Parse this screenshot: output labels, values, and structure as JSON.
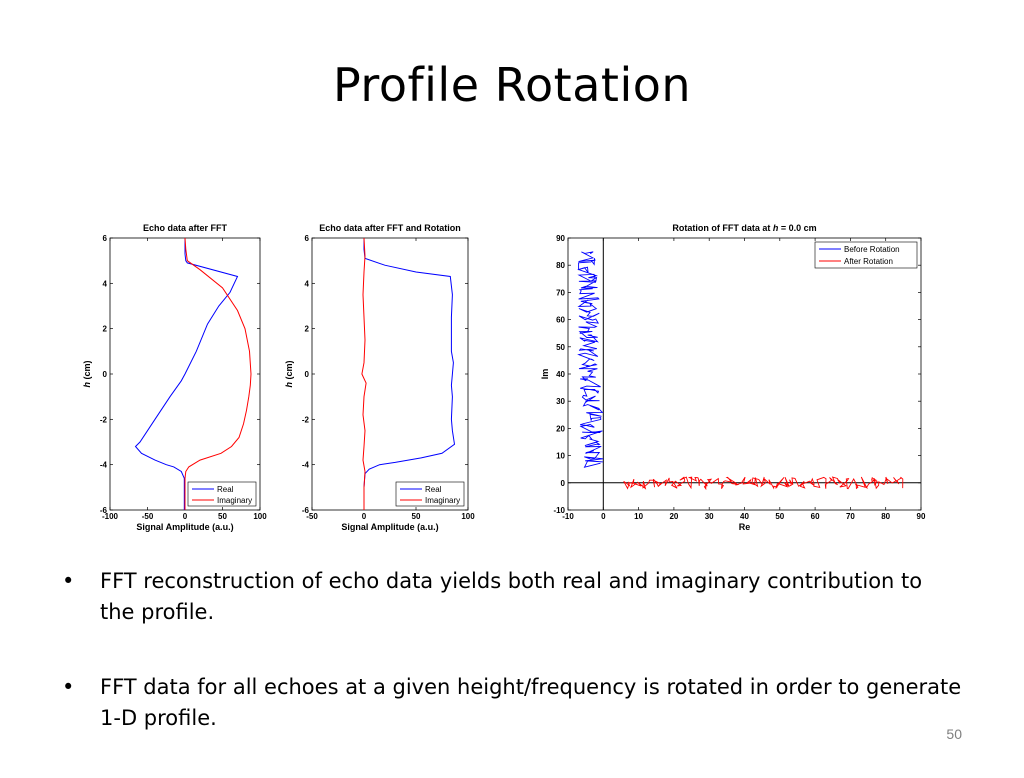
{
  "slide": {
    "title": "Profile Rotation",
    "bullets": [
      "FFT reconstruction of echo data yields both real and imaginary contribution to the profile.",
      "FFT data for all echoes at a given height/frequency is rotated in order to generate 1-D profile."
    ],
    "bullet_glyph": "•",
    "page_number": "50"
  },
  "colors": {
    "blue": "#0000ff",
    "red": "#ff0000"
  },
  "chart_data": [
    {
      "type": "line",
      "title": "Echo data after FFT",
      "xlabel": "Signal Amplitude (a.u.)",
      "ylabel_italic": "h",
      "ylabel_rest": " (cm)",
      "xlim": [
        -100,
        100
      ],
      "ylim": [
        -6,
        6
      ],
      "xticks": [
        -100,
        -50,
        0,
        50,
        100
      ],
      "yticks": [
        -6,
        -4,
        -2,
        0,
        2,
        4,
        6
      ],
      "grid": false,
      "legend": "bottom-right",
      "series": [
        {
          "name": "Real",
          "color": "#0000ff",
          "x": [
            0,
            0,
            0,
            0,
            1,
            3,
            70,
            60,
            45,
            30,
            15,
            0,
            -5,
            -20,
            -40,
            -60,
            -66,
            -58,
            -40,
            -25,
            -15,
            -5,
            -1,
            -1,
            -1
          ],
          "y": [
            6,
            5.8,
            5.5,
            5.3,
            5.0,
            4.9,
            4.3,
            3.6,
            3.0,
            2.2,
            1.0,
            0.0,
            -0.3,
            -1.0,
            -2.0,
            -3.0,
            -3.2,
            -3.5,
            -3.8,
            -4.0,
            -4.1,
            -4.3,
            -4.6,
            -5.0,
            -6.0
          ]
        },
        {
          "name": "Imaginary",
          "color": "#ff0000",
          "x": [
            0,
            1,
            3,
            20,
            50,
            70,
            80,
            86,
            88,
            87,
            85,
            82,
            78,
            72,
            62,
            48,
            20,
            5,
            1,
            0,
            0,
            0
          ],
          "y": [
            6,
            5.5,
            5.0,
            4.6,
            3.8,
            2.8,
            2.0,
            1.0,
            0.0,
            -0.5,
            -1.0,
            -1.6,
            -2.2,
            -2.8,
            -3.2,
            -3.5,
            -3.8,
            -4.1,
            -4.3,
            -4.6,
            -5.0,
            -6.0
          ]
        }
      ]
    },
    {
      "type": "line",
      "title": "Echo data after FFT and Rotation",
      "xlabel": "Signal Amplitude (a.u.)",
      "ylabel_italic": "h",
      "ylabel_rest": " (cm)",
      "xlim": [
        -50,
        100
      ],
      "ylim": [
        -6,
        6
      ],
      "xticks": [
        -50,
        0,
        50,
        100
      ],
      "yticks": [
        -6,
        -4,
        -2,
        0,
        2,
        4,
        6
      ],
      "grid": false,
      "legend": "bottom-right",
      "series": [
        {
          "name": "Real",
          "color": "#0000ff",
          "x": [
            0,
            0,
            1,
            20,
            50,
            83,
            85,
            84,
            84,
            86,
            85,
            84,
            85,
            84,
            85,
            87,
            75,
            55,
            30,
            15,
            5,
            1,
            0,
            0
          ],
          "y": [
            6,
            5.5,
            5.1,
            4.8,
            4.5,
            4.3,
            3.5,
            2.5,
            1.0,
            0.5,
            0.0,
            -0.5,
            -1.0,
            -2.0,
            -2.5,
            -3.1,
            -3.5,
            -3.7,
            -3.9,
            -4.0,
            -4.2,
            -4.4,
            -5.0,
            -6.0
          ]
        },
        {
          "name": "Imaginary",
          "color": "#ff0000",
          "x": [
            0,
            1,
            0,
            -1,
            0,
            1,
            0,
            -2,
            2,
            0,
            -1,
            1,
            0,
            -1,
            1,
            0,
            0
          ],
          "y": [
            6,
            5.2,
            4.5,
            3.5,
            2.5,
            1.5,
            0.5,
            0.0,
            -0.4,
            -1.0,
            -1.8,
            -2.5,
            -3.2,
            -3.8,
            -4.3,
            -5.0,
            -6.0
          ]
        }
      ]
    },
    {
      "type": "scatter",
      "title_prefix": "Rotation of FFT data at ",
      "title_italic": "h",
      "title_suffix": " = 0.0 cm",
      "xlabel": "Re",
      "ylabel": "Im",
      "xlim": [
        -10,
        90
      ],
      "ylim": [
        -10,
        90
      ],
      "xticks": [
        -10,
        0,
        10,
        20,
        30,
        40,
        50,
        60,
        70,
        80,
        90
      ],
      "yticks": [
        -10,
        0,
        10,
        20,
        30,
        40,
        50,
        60,
        70,
        80,
        90
      ],
      "grid": false,
      "legend": "top-right",
      "series": [
        {
          "name": "Before Rotation",
          "color": "#0000ff",
          "re_range": [
            -6,
            0
          ],
          "im_range": [
            6,
            85
          ]
        },
        {
          "name": "After Rotation",
          "color": "#ff0000",
          "re_range": [
            6,
            85
          ],
          "im_range": [
            -1,
            1
          ]
        }
      ]
    }
  ]
}
